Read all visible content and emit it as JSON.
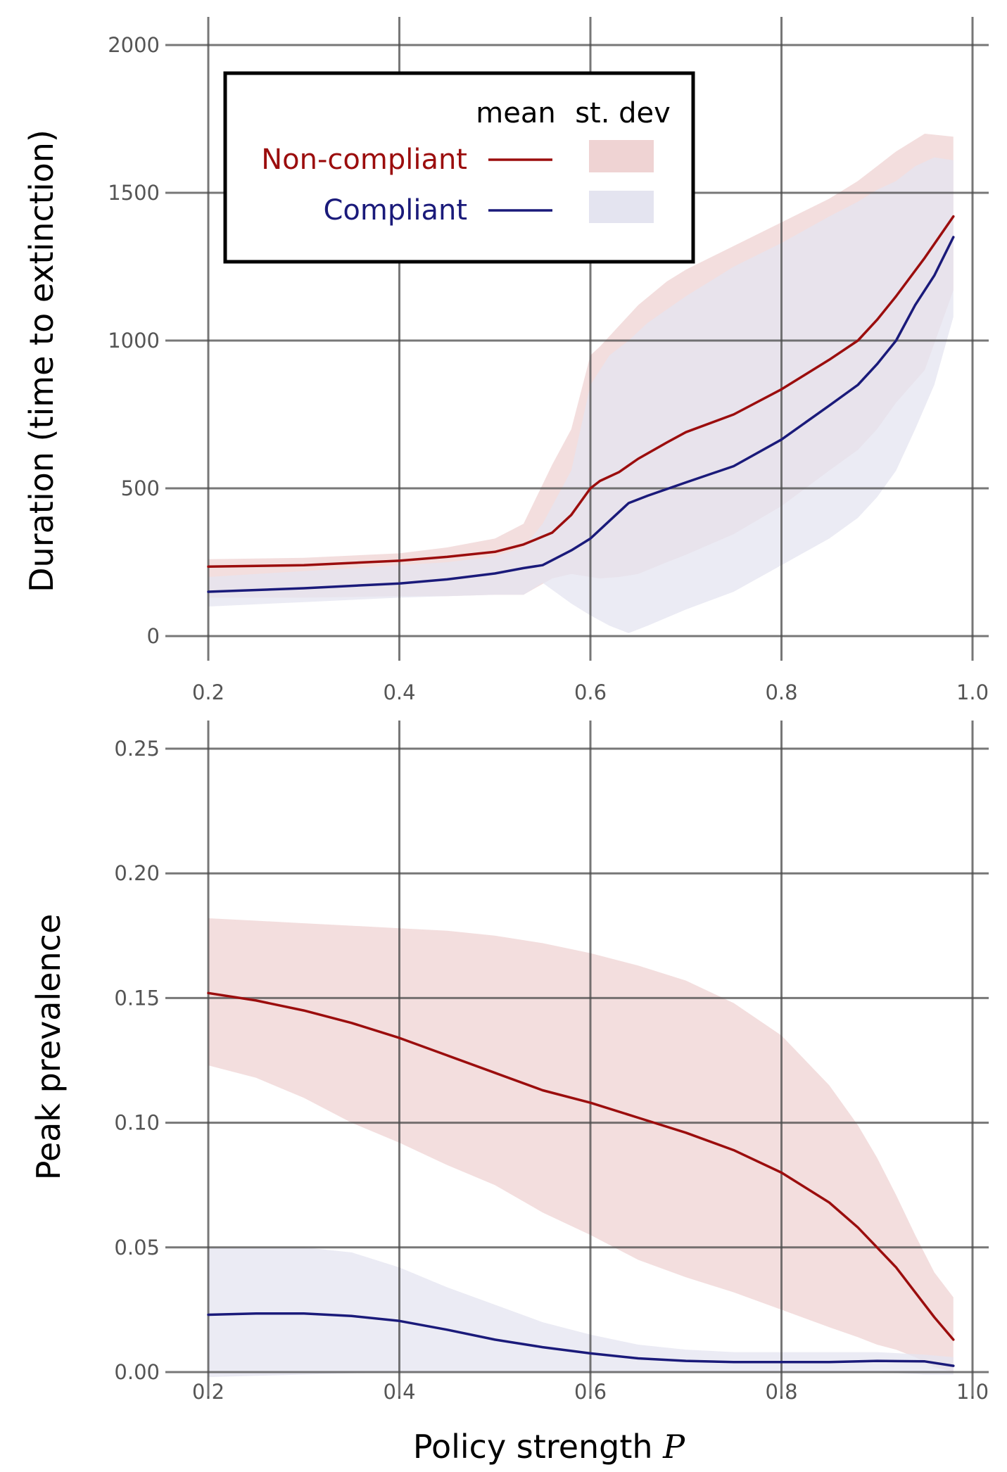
{
  "chart_data": [
    {
      "type": "line",
      "xlabel": "",
      "ylabel": "Duration (time to extinction)",
      "xlim": [
        0.2,
        1.0
      ],
      "ylim": [
        0,
        2000
      ],
      "xticks": [
        "0.2",
        "0.4",
        "0.6",
        "0.8",
        "1.0"
      ],
      "yticks": [
        "0",
        "500",
        "1000",
        "1500",
        "2000"
      ],
      "grid": true,
      "legend": {
        "placement": "top-left",
        "header_mean": "mean",
        "header_sd": "st. dev"
      },
      "series": [
        {
          "name": "Non-compliant",
          "color": "#9b0d0d",
          "band_color": "#efd3d3",
          "x": [
            0.2,
            0.3,
            0.4,
            0.45,
            0.5,
            0.53,
            0.56,
            0.58,
            0.6,
            0.61,
            0.63,
            0.65,
            0.68,
            0.7,
            0.75,
            0.8,
            0.85,
            0.88,
            0.9,
            0.92,
            0.95,
            0.98
          ],
          "mean": [
            235,
            240,
            255,
            268,
            285,
            310,
            350,
            410,
            500,
            525,
            555,
            600,
            655,
            690,
            750,
            835,
            935,
            1000,
            1070,
            1150,
            1280,
            1420
          ],
          "lower": [
            130,
            130,
            135,
            135,
            140,
            140,
            195,
            210,
            200,
            195,
            200,
            210,
            250,
            275,
            345,
            440,
            560,
            630,
            700,
            790,
            900,
            1170
          ],
          "upper": [
            260,
            265,
            280,
            300,
            330,
            380,
            580,
            700,
            950,
            980,
            1050,
            1120,
            1200,
            1240,
            1320,
            1400,
            1480,
            1540,
            1590,
            1640,
            1700,
            1690
          ]
        },
        {
          "name": "Compliant",
          "color": "#1a1a7a",
          "band_color": "#e4e4f0",
          "x": [
            0.2,
            0.3,
            0.4,
            0.45,
            0.5,
            0.53,
            0.55,
            0.58,
            0.6,
            0.62,
            0.64,
            0.66,
            0.7,
            0.75,
            0.8,
            0.85,
            0.88,
            0.9,
            0.92,
            0.94,
            0.96,
            0.98
          ],
          "mean": [
            150,
            162,
            178,
            192,
            212,
            230,
            240,
            290,
            330,
            390,
            450,
            475,
            520,
            575,
            665,
            780,
            850,
            920,
            1000,
            1120,
            1220,
            1350
          ],
          "lower": [
            100,
            115,
            130,
            135,
            140,
            140,
            180,
            110,
            70,
            35,
            10,
            35,
            90,
            150,
            240,
            330,
            400,
            470,
            560,
            700,
            850,
            1080
          ],
          "upper": [
            200,
            220,
            240,
            250,
            270,
            300,
            380,
            560,
            850,
            950,
            1000,
            1060,
            1150,
            1250,
            1330,
            1420,
            1470,
            1510,
            1540,
            1590,
            1620,
            1610
          ]
        }
      ]
    },
    {
      "type": "line",
      "xlabel": "Policy strength P",
      "ylabel": "Peak prevalence",
      "xlim": [
        0.2,
        1.0
      ],
      "ylim": [
        0,
        0.25
      ],
      "xticks": [
        "0.2",
        "0.4",
        "0.6",
        "0.8",
        "1.0"
      ],
      "yticks": [
        "0.00",
        "0.05",
        "0.10",
        "0.15",
        "0.20",
        "0.25"
      ],
      "grid": true,
      "series": [
        {
          "name": "Non-compliant",
          "color": "#9b0d0d",
          "band_color": "#efd3d3",
          "x": [
            0.2,
            0.25,
            0.3,
            0.35,
            0.4,
            0.45,
            0.5,
            0.55,
            0.6,
            0.65,
            0.7,
            0.75,
            0.8,
            0.85,
            0.88,
            0.9,
            0.92,
            0.94,
            0.96,
            0.98
          ],
          "mean": [
            0.152,
            0.149,
            0.145,
            0.14,
            0.134,
            0.127,
            0.12,
            0.113,
            0.108,
            0.102,
            0.096,
            0.089,
            0.08,
            0.068,
            0.058,
            0.05,
            0.042,
            0.032,
            0.022,
            0.013
          ],
          "lower": [
            0.123,
            0.118,
            0.11,
            0.1,
            0.092,
            0.083,
            0.075,
            0.064,
            0.055,
            0.045,
            0.038,
            0.032,
            0.025,
            0.018,
            0.014,
            0.011,
            0.009,
            0.006,
            0.002,
            0.0
          ],
          "upper": [
            0.182,
            0.181,
            0.18,
            0.179,
            0.178,
            0.177,
            0.175,
            0.172,
            0.168,
            0.163,
            0.157,
            0.148,
            0.135,
            0.115,
            0.099,
            0.086,
            0.071,
            0.055,
            0.04,
            0.03
          ]
        },
        {
          "name": "Compliant",
          "color": "#1a1a7a",
          "band_color": "#e4e4f0",
          "x": [
            0.2,
            0.25,
            0.3,
            0.35,
            0.4,
            0.45,
            0.5,
            0.55,
            0.6,
            0.65,
            0.7,
            0.75,
            0.8,
            0.85,
            0.9,
            0.95,
            0.98
          ],
          "mean": [
            0.023,
            0.0235,
            0.0235,
            0.0225,
            0.0205,
            0.017,
            0.013,
            0.01,
            0.0075,
            0.0055,
            0.0045,
            0.004,
            0.004,
            0.004,
            0.0045,
            0.0043,
            0.0025
          ],
          "lower": [
            -0.002,
            -0.0015,
            -0.001,
            -0.0005,
            0.0,
            0.0,
            0.0,
            0.0,
            0.0,
            0.0,
            0.0,
            0.0,
            0.0,
            0.0,
            0.0,
            -0.001,
            -0.001
          ],
          "upper": [
            0.05,
            0.05,
            0.05,
            0.048,
            0.042,
            0.034,
            0.027,
            0.02,
            0.015,
            0.011,
            0.009,
            0.008,
            0.008,
            0.008,
            0.008,
            0.007,
            0.006
          ]
        }
      ]
    }
  ]
}
